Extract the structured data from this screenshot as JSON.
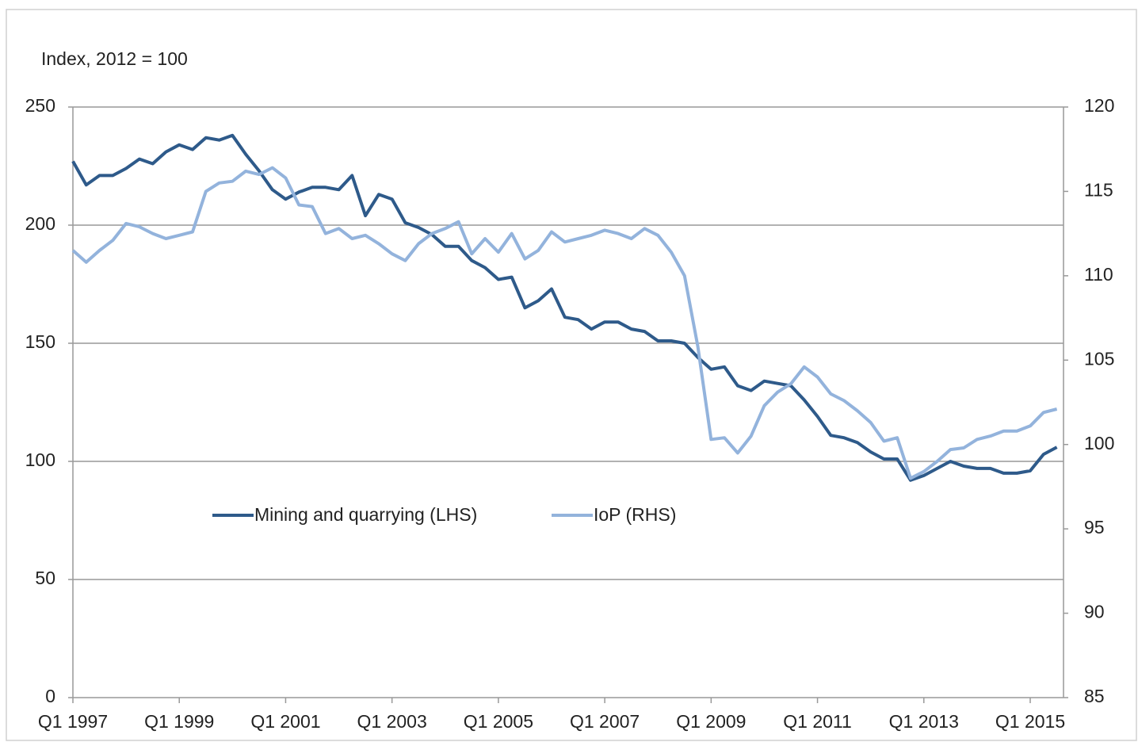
{
  "chart_data": {
    "type": "line",
    "ylabel": "Index, 2012 = 100",
    "categories": [
      "Q1 1997",
      null,
      null,
      null,
      null,
      null,
      null,
      null,
      "Q1 1999",
      null,
      null,
      null,
      null,
      null,
      null,
      null,
      "Q1 2001",
      null,
      null,
      null,
      null,
      null,
      null,
      null,
      "Q1 2003",
      null,
      null,
      null,
      null,
      null,
      null,
      null,
      "Q1 2005",
      null,
      null,
      null,
      null,
      null,
      null,
      null,
      "Q1 2007",
      null,
      null,
      null,
      null,
      null,
      null,
      null,
      "Q1 2009",
      null,
      null,
      null,
      null,
      null,
      null,
      null,
      "Q1 2011",
      null,
      null,
      null,
      null,
      null,
      null,
      null,
      "Q1 2013",
      null,
      null,
      null,
      null,
      null,
      null,
      null,
      "Q1 2015",
      null,
      null
    ],
    "series": [
      {
        "name": "Mining and quarrying (LHS)",
        "color": "#2e5a8a",
        "axis": "y",
        "values": [
          227,
          217,
          221,
          221,
          224,
          228,
          226,
          231,
          234,
          232,
          237,
          236,
          238,
          230,
          223,
          215,
          211,
          214,
          216,
          216,
          215,
          221,
          204,
          213,
          211,
          201,
          199,
          196,
          191,
          191,
          185,
          182,
          177,
          178,
          165,
          168,
          173,
          161,
          160,
          156,
          159,
          159,
          156,
          155,
          151,
          151,
          150,
          144,
          139,
          140,
          132,
          130,
          134,
          133,
          132,
          126,
          119,
          111,
          110,
          108,
          104,
          101,
          101,
          92,
          94,
          97,
          100,
          98,
          97,
          97,
          95,
          95,
          96,
          103,
          106
        ]
      },
      {
        "name": "IoP (RHS)",
        "color": "#93b3dc",
        "axis": "y2",
        "values": [
          111.5,
          110.8,
          111.5,
          112.1,
          113.1,
          112.9,
          112.5,
          112.2,
          112.4,
          112.6,
          115.0,
          115.5,
          115.6,
          116.2,
          116.0,
          116.4,
          115.8,
          114.2,
          114.1,
          112.5,
          112.8,
          112.2,
          112.4,
          111.9,
          111.3,
          110.9,
          111.9,
          112.5,
          112.8,
          113.2,
          111.3,
          112.2,
          111.4,
          112.5,
          111.0,
          111.5,
          112.6,
          112.0,
          112.2,
          112.4,
          112.7,
          112.5,
          112.2,
          112.8,
          112.4,
          111.4,
          110.0,
          105.8,
          100.3,
          100.4,
          99.5,
          100.5,
          102.3,
          103.1,
          103.6,
          104.6,
          104.0,
          103.0,
          102.6,
          102.0,
          101.3,
          100.2,
          100.4,
          98.0,
          98.4,
          99.0,
          99.7,
          99.8,
          100.3,
          100.5,
          100.8,
          100.8,
          101.1,
          101.9,
          102.1
        ]
      }
    ],
    "ylim": [
      0,
      250
    ],
    "yticks": [
      0,
      50,
      100,
      150,
      200,
      250
    ],
    "y2lim": [
      85,
      120
    ],
    "y2ticks": [
      85,
      90,
      95,
      100,
      105,
      110,
      115,
      120
    ],
    "grid": true
  }
}
